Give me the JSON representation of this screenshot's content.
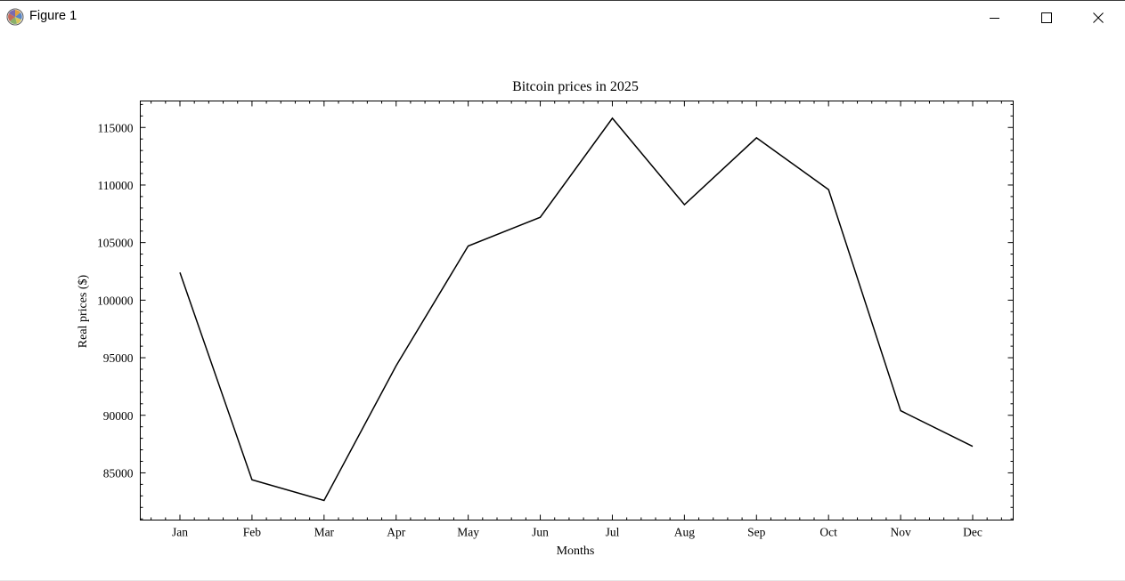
{
  "window": {
    "title": "Figure 1",
    "app_icon": "matplotlib-icon",
    "controls": {
      "minimize_icon": "minimize-icon",
      "maximize_icon": "maximize-icon",
      "close_icon": "close-icon"
    }
  },
  "chart_data": {
    "type": "line",
    "title": "Bitcoin prices in 2025",
    "xlabel": "Months",
    "ylabel": "Real prices ($)",
    "categories": [
      "Jan",
      "Feb",
      "Mar",
      "Apr",
      "May",
      "Jun",
      "Jul",
      "Aug",
      "Sep",
      "Oct",
      "Nov",
      "Dec"
    ],
    "series": [
      {
        "values": [
          102400,
          84400,
          82600,
          94300,
          104700,
          107200,
          115800,
          108300,
          114100,
          109600,
          90400,
          87300
        ],
        "color": "#000000"
      }
    ],
    "ylim": [
      80900,
      117300
    ],
    "yticks": [
      85000,
      90000,
      95000,
      100000,
      105000,
      110000,
      115000
    ],
    "ytick_labels": [
      "85000",
      "90000",
      "95000",
      "100000",
      "105000",
      "110000",
      "115000"
    ],
    "grid": false,
    "tick_direction": "in",
    "minor_ticks": true
  }
}
